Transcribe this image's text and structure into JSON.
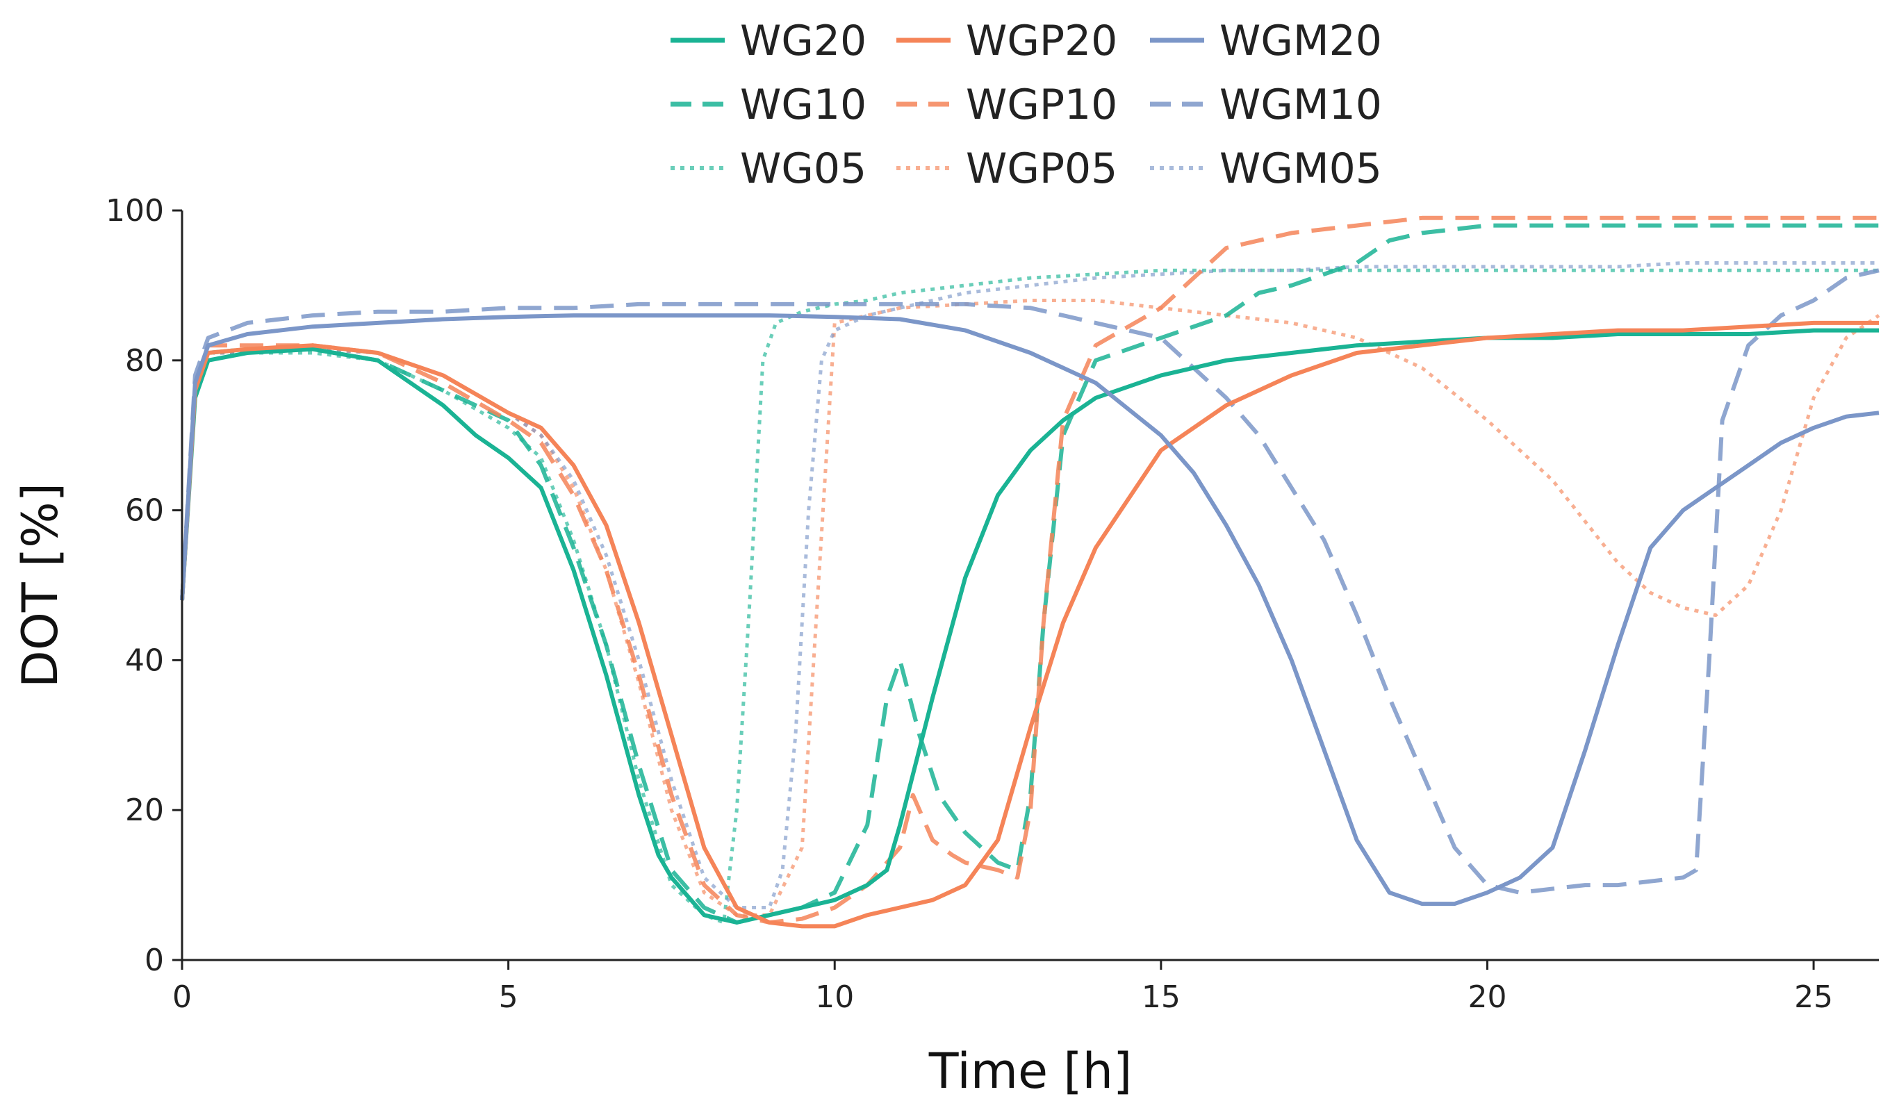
{
  "chart_data": {
    "type": "line",
    "title": "",
    "xlabel": "Time [h]",
    "ylabel": "DOT [%]",
    "xlim": [
      0,
      26
    ],
    "ylim": [
      0,
      100
    ],
    "xticks": [
      0,
      5,
      10,
      15,
      20,
      25
    ],
    "yticks": [
      0,
      20,
      40,
      60,
      80,
      100
    ],
    "grid": false,
    "legend_position": "top-center",
    "colors": {
      "WG": "#1ab394",
      "WGP": "#f58458",
      "WGM": "#7b96c8"
    },
    "series": [
      {
        "name": "WG20",
        "group": "WG",
        "style": "solid",
        "x": [
          0,
          0.2,
          0.4,
          1,
          2,
          3,
          4,
          4.5,
          5,
          5.5,
          6,
          6.5,
          7,
          7.3,
          7.5,
          8,
          8.5,
          9,
          9.5,
          10,
          10.5,
          10.8,
          11,
          11.5,
          12,
          12.5,
          13,
          13.5,
          14,
          15,
          16,
          17,
          18,
          19,
          20,
          21,
          22,
          23,
          24,
          25,
          26
        ],
        "y": [
          48,
          75,
          80,
          81,
          81.5,
          80,
          74,
          70,
          67,
          63,
          52,
          38,
          22,
          14,
          11,
          6,
          5,
          6,
          7,
          8,
          10,
          12,
          18,
          35,
          51,
          62,
          68,
          72,
          75,
          78,
          80,
          81,
          82,
          82.5,
          83,
          83,
          83.5,
          83.5,
          83.5,
          84,
          84
        ]
      },
      {
        "name": "WG10",
        "group": "WG",
        "style": "dashed",
        "x": [
          0,
          0.2,
          0.4,
          1,
          2,
          3,
          4,
          5,
          5.5,
          6,
          6.5,
          7,
          7.5,
          8,
          8.5,
          9,
          9.5,
          10,
          10.5,
          10.8,
          11,
          11.3,
          11.6,
          12,
          12.5,
          12.8,
          13,
          13.2,
          13.5,
          14,
          15,
          16,
          16.5,
          17,
          18,
          18.5,
          19,
          20,
          21,
          22,
          23,
          24,
          25,
          26
        ],
        "y": [
          48,
          76,
          81,
          81.5,
          81.5,
          80,
          76,
          72,
          66,
          55,
          42,
          26,
          12,
          7,
          5,
          6,
          7,
          9,
          18,
          35,
          40,
          30,
          22,
          17,
          13,
          12,
          22,
          45,
          70,
          80,
          83,
          86,
          89,
          90,
          93,
          96,
          97,
          98,
          98,
          98,
          98,
          98,
          98,
          98
        ]
      },
      {
        "name": "WG05",
        "group": "WG",
        "style": "dotted",
        "x": [
          0,
          0.2,
          0.4,
          1,
          2,
          3,
          4,
          5,
          5.5,
          6,
          6.5,
          7,
          7.5,
          8,
          8.3,
          8.5,
          8.7,
          8.9,
          9.1,
          9.5,
          10,
          10.5,
          11,
          12,
          13,
          14,
          15,
          16,
          17,
          18,
          19,
          20,
          21,
          22,
          23,
          24,
          25,
          26
        ],
        "y": [
          48,
          77,
          81,
          81,
          81,
          80,
          76,
          71,
          67,
          56,
          42,
          24,
          10,
          6,
          5,
          20,
          48,
          80,
          85,
          86.5,
          87.5,
          88,
          89,
          90,
          91,
          91.5,
          92,
          92,
          92,
          92,
          92,
          92,
          92,
          92,
          92,
          92,
          92,
          92
        ]
      },
      {
        "name": "WGP20",
        "group": "WGP",
        "style": "solid",
        "x": [
          0,
          0.2,
          0.4,
          1,
          2,
          3,
          4,
          5,
          5.5,
          6,
          6.5,
          7,
          7.5,
          8,
          8.5,
          9,
          9.5,
          10,
          10.5,
          11,
          11.5,
          12,
          12.5,
          13,
          13.5,
          14,
          15,
          16,
          17,
          18,
          19,
          20,
          21,
          22,
          23,
          24,
          25,
          26
        ],
        "y": [
          48,
          76,
          81,
          81.5,
          82,
          81,
          78,
          73,
          71,
          66,
          58,
          45,
          30,
          15,
          7,
          5,
          4.5,
          4.5,
          6,
          7,
          8,
          10,
          16,
          31,
          45,
          55,
          68,
          74,
          78,
          81,
          82,
          83,
          83.5,
          84,
          84,
          84.5,
          85,
          85
        ]
      },
      {
        "name": "WGP10",
        "group": "WGP",
        "style": "dashed",
        "x": [
          0,
          0.2,
          0.4,
          1,
          2,
          3,
          4,
          5,
          5.5,
          6,
          6.5,
          7,
          7.5,
          8,
          8.5,
          9,
          9.5,
          10,
          10.5,
          11,
          11.2,
          11.5,
          11.8,
          12,
          12.5,
          12.8,
          13,
          13.2,
          13.5,
          14,
          15,
          15.5,
          16,
          17,
          18,
          19,
          20,
          21,
          22,
          23,
          24,
          25,
          26
        ],
        "y": [
          48,
          77,
          82,
          82,
          82,
          81,
          77,
          72,
          69,
          62,
          52,
          38,
          22,
          10,
          6,
          5,
          5.5,
          7,
          10,
          15,
          22,
          16,
          14,
          13,
          12,
          11,
          20,
          45,
          72,
          82,
          87,
          91,
          95,
          97,
          98,
          99,
          99,
          99,
          99,
          99,
          99,
          99,
          99
        ]
      },
      {
        "name": "WGP05",
        "group": "WGP",
        "style": "dotted",
        "x": [
          0,
          0.2,
          0.4,
          1,
          2,
          3,
          4,
          5,
          5.5,
          6,
          6.5,
          7,
          7.5,
          8,
          8.5,
          9,
          9.5,
          10,
          11,
          12,
          13,
          14,
          15,
          16,
          17,
          18,
          19,
          20,
          21,
          22,
          22.5,
          23,
          23.5,
          24,
          24.5,
          25,
          25.5,
          26
        ],
        "y": [
          48,
          77,
          81,
          81,
          81.5,
          81,
          78,
          73,
          70,
          63,
          52,
          37,
          20,
          9,
          6,
          6,
          15,
          85,
          87,
          87.5,
          88,
          88,
          87,
          86,
          85,
          83,
          79,
          72,
          64,
          53,
          49,
          47,
          46,
          50,
          60,
          75,
          83,
          86
        ]
      },
      {
        "name": "WGM20",
        "group": "WGM",
        "style": "solid",
        "x": [
          0,
          0.2,
          0.4,
          1,
          2,
          3,
          4,
          5,
          6,
          7,
          8,
          9,
          10,
          11,
          12,
          13,
          14,
          15,
          15.5,
          16,
          16.5,
          17,
          17.5,
          18,
          18.5,
          19,
          19.5,
          20,
          20.5,
          21,
          21.5,
          22,
          22.5,
          23,
          23.5,
          24,
          24.5,
          25,
          25.5,
          26
        ],
        "y": [
          48,
          77,
          82,
          83.5,
          84.5,
          85,
          85.5,
          85.8,
          86,
          86,
          86,
          86,
          85.8,
          85.5,
          84,
          81,
          77,
          70,
          65,
          58,
          50,
          40,
          28,
          16,
          9,
          7.5,
          7.5,
          9,
          11,
          15,
          28,
          42,
          55,
          60,
          63,
          66,
          69,
          71,
          72.5,
          73
        ]
      },
      {
        "name": "WGM10",
        "group": "WGM",
        "style": "dashed",
        "x": [
          0,
          0.2,
          0.4,
          1,
          2,
          3,
          4,
          5,
          6,
          7,
          8,
          9,
          10,
          11,
          12,
          13,
          14,
          15,
          15.5,
          16,
          16.5,
          17,
          17.5,
          18,
          18.5,
          19,
          19.5,
          20,
          20.5,
          21,
          21.5,
          22,
          22.5,
          23,
          23.2,
          23.4,
          23.6,
          24,
          24.5,
          25,
          25.5,
          26
        ],
        "y": [
          48,
          78,
          83,
          85,
          86,
          86.5,
          86.5,
          87,
          87,
          87.5,
          87.5,
          87.5,
          87.5,
          87.5,
          87.5,
          87,
          85,
          83,
          79,
          75,
          70,
          63,
          56,
          46,
          35,
          25,
          15,
          10,
          9,
          9.5,
          10,
          10,
          10.5,
          11,
          12,
          40,
          72,
          82,
          86,
          88,
          91,
          92
        ]
      },
      {
        "name": "WGM05",
        "group": "WGM",
        "style": "dotted",
        "x": [
          0,
          0.2,
          0.4,
          1,
          2,
          3,
          4,
          5,
          5.5,
          6,
          6.5,
          7,
          7.5,
          8,
          8.5,
          9,
          9.2,
          9.4,
          9.6,
          9.8,
          10,
          10.5,
          11,
          12,
          13,
          14,
          15,
          16,
          17,
          18,
          19,
          20,
          21,
          22,
          23,
          24,
          25,
          26
        ],
        "y": [
          48,
          77,
          81,
          81,
          81.5,
          81,
          78,
          73,
          70,
          64,
          54,
          40,
          24,
          11,
          7,
          7,
          12,
          30,
          60,
          80,
          84,
          86,
          87,
          89,
          90,
          91,
          91.5,
          92,
          92,
          92.5,
          92.5,
          92.5,
          92.5,
          92.5,
          93,
          93,
          93,
          93
        ]
      }
    ]
  }
}
